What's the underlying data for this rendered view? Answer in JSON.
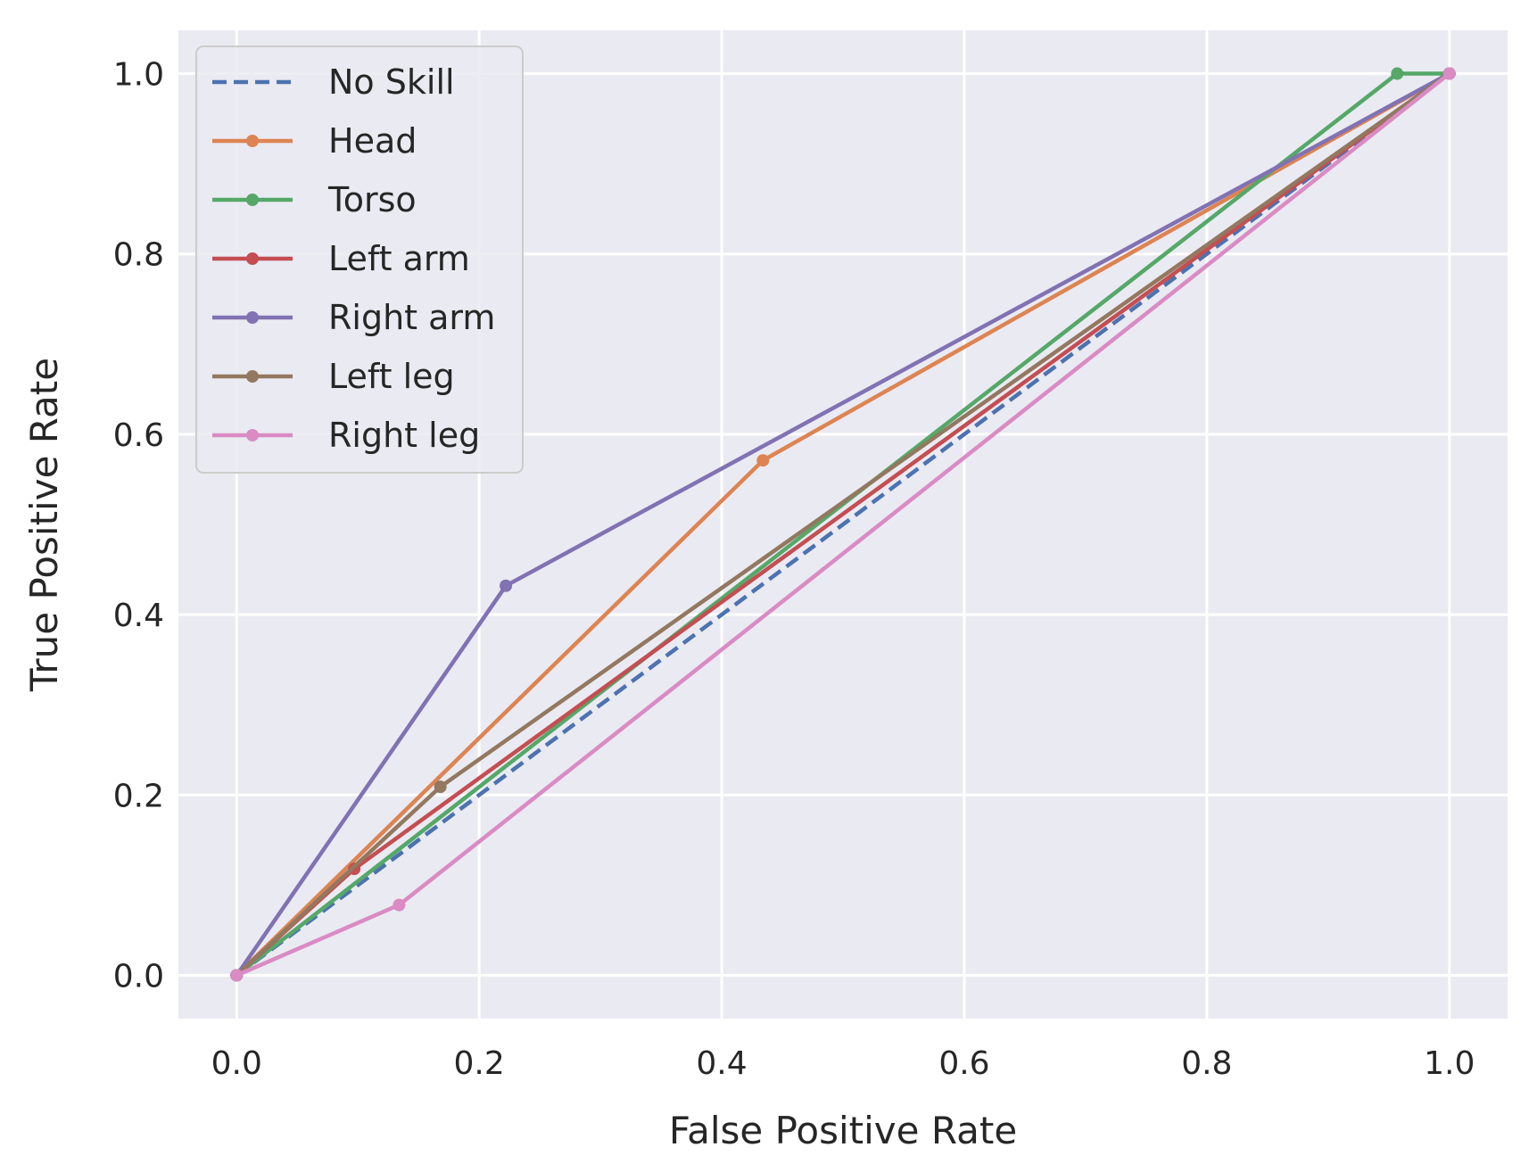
{
  "chart_data": {
    "type": "line",
    "title": "",
    "xlabel": "False Positive Rate",
    "ylabel": "True Positive Rate",
    "xlim": [
      -0.048,
      1.048
    ],
    "ylim": [
      -0.048,
      1.048
    ],
    "xticks": [
      0.0,
      0.2,
      0.4,
      0.6,
      0.8,
      1.0
    ],
    "yticks": [
      0.0,
      0.2,
      0.4,
      0.6,
      0.8,
      1.0
    ],
    "xtick_labels": [
      "0.0",
      "0.2",
      "0.4",
      "0.6",
      "0.8",
      "1.0"
    ],
    "ytick_labels": [
      "0.0",
      "0.2",
      "0.4",
      "0.6",
      "0.8",
      "1.0"
    ],
    "grid": true,
    "background": "#eaeaf2",
    "legend_position": "top-left",
    "series": [
      {
        "name": "No Skill",
        "color": "#4c72b0",
        "dashed": true,
        "markers": false,
        "x": [
          0,
          1
        ],
        "y": [
          0,
          1
        ]
      },
      {
        "name": "Head",
        "color": "#dd8452",
        "dashed": false,
        "markers": true,
        "x": [
          0,
          0.434,
          1
        ],
        "y": [
          0,
          0.571,
          1
        ]
      },
      {
        "name": "Torso",
        "color": "#55a868",
        "dashed": false,
        "markers": true,
        "x": [
          0,
          0.957,
          1
        ],
        "y": [
          0,
          1,
          1
        ]
      },
      {
        "name": "Left arm",
        "color": "#c44e52",
        "dashed": false,
        "markers": true,
        "x": [
          0,
          0.097,
          1
        ],
        "y": [
          0,
          0.118,
          1
        ]
      },
      {
        "name": "Right arm",
        "color": "#8172b3",
        "dashed": false,
        "markers": true,
        "x": [
          0,
          0.222,
          1
        ],
        "y": [
          0,
          0.432,
          1
        ]
      },
      {
        "name": "Left leg",
        "color": "#937860",
        "dashed": false,
        "markers": true,
        "x": [
          0,
          0.168,
          1
        ],
        "y": [
          0,
          0.209,
          1
        ]
      },
      {
        "name": "Right leg",
        "color": "#da8bc3",
        "dashed": false,
        "markers": true,
        "x": [
          0,
          0.134,
          1
        ],
        "y": [
          0,
          0.078,
          1
        ]
      }
    ]
  }
}
